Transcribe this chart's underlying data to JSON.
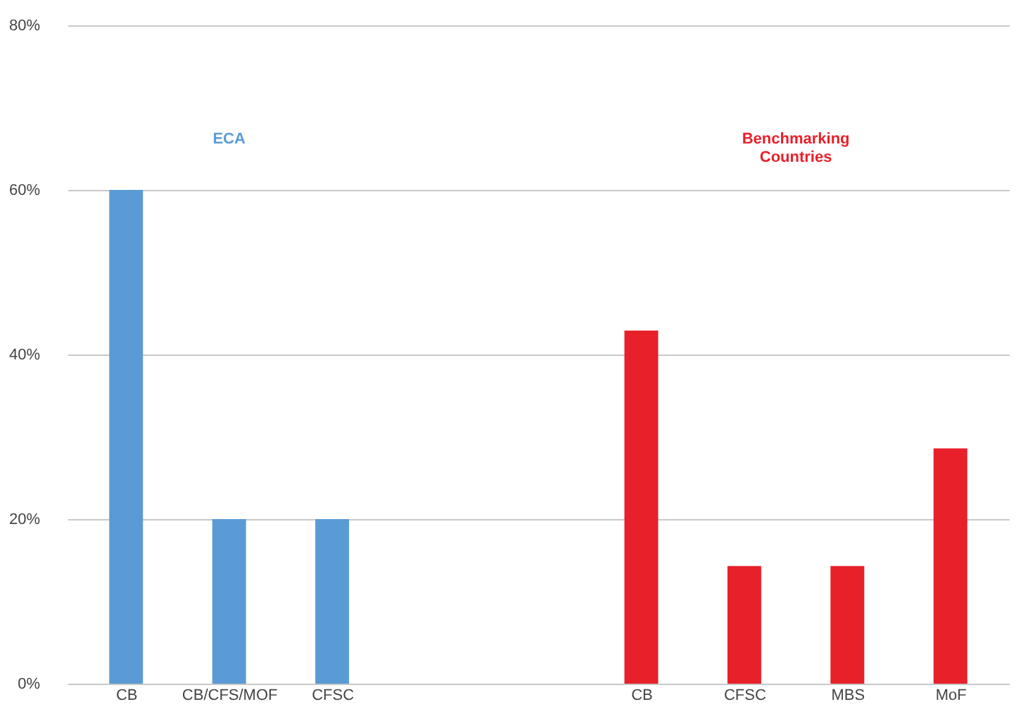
{
  "chart_data": {
    "type": "bar",
    "categories": [
      "CB",
      "CB/CFS/MOF",
      "CFSC",
      null,
      null,
      "CB",
      "CFSC",
      "MBS",
      "MoF"
    ],
    "series": [
      {
        "name": "ECA",
        "color": "#5b9bd5",
        "values": [
          60,
          20,
          20,
          null,
          null,
          null,
          null,
          null,
          null
        ]
      },
      {
        "name": "Benchmarking Countries",
        "color": "#e8202a",
        "values": [
          null,
          null,
          null,
          null,
          null,
          42.9,
          14.3,
          14.3,
          28.6
        ]
      }
    ],
    "ylim": [
      0,
      80
    ],
    "yticks": [
      {
        "value": 0,
        "label": "0%"
      },
      {
        "value": 20,
        "label": "20%"
      },
      {
        "value": 40,
        "label": "40%"
      },
      {
        "value": 60,
        "label": "60%"
      },
      {
        "value": 80,
        "label": "80%"
      }
    ],
    "grid": "y",
    "legend": false
  }
}
